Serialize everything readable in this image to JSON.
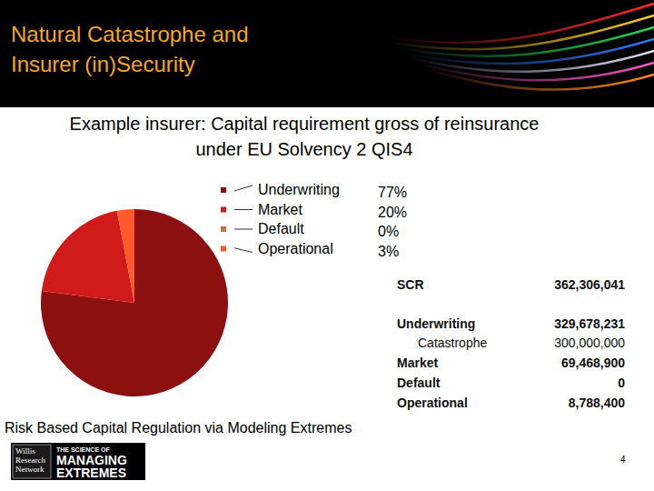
{
  "slide": {
    "title": [
      "Natural Catastrophe and",
      "Insurer (in)Security"
    ],
    "footer": "Risk Based Capital Regulation via Modeling Extremes",
    "page": "4",
    "logo": {
      "left": [
        "Willis",
        "Research",
        "Network"
      ],
      "right": [
        "THE SCIENCE OF",
        "MANAGING",
        "EXTREMES"
      ]
    }
  },
  "chart_data": {
    "type": "pie",
    "title": [
      "Example insurer: Capital requirement gross of reinsurance",
      "under EU Solvency 2 QIS4"
    ],
    "categories": [
      "Underwriting",
      "Market",
      "Default",
      "Operational"
    ],
    "values": [
      77,
      20,
      0,
      3
    ],
    "value_labels": [
      "77%",
      "20%",
      "0%",
      "3%"
    ],
    "colors": [
      "#8c1010",
      "#d11b1b",
      "#c8704a",
      "#ff5a2a"
    ],
    "legend": "right"
  },
  "table": {
    "rows": [
      [
        "SCR",
        "362,306,041"
      ],
      [
        "Underwriting",
        "329,678,231"
      ],
      [
        "Catastrophe",
        "300,000,000"
      ],
      [
        "Market",
        "69,468,900"
      ],
      [
        "Default",
        "0"
      ],
      [
        "Operational",
        "8,788,400"
      ]
    ]
  }
}
